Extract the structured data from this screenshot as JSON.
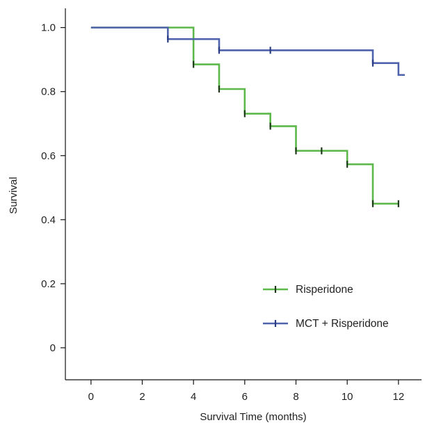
{
  "chart_data": {
    "type": "line",
    "subtype": "kaplan-meier-step",
    "title": "",
    "xlabel": "Survival Time (months)",
    "ylabel": "Survival",
    "xlim": [
      -1,
      12.9
    ],
    "ylim": [
      -0.1,
      1.06
    ],
    "xticks": [
      0,
      2,
      4,
      6,
      8,
      10,
      12
    ],
    "xtick_labels": [
      "0",
      "2",
      "4",
      "6",
      "8",
      "10",
      "12"
    ],
    "yticks": [
      0,
      0.2,
      0.4,
      0.6,
      0.8,
      1.0
    ],
    "ytick_labels": [
      "0",
      "0.2",
      "0.4",
      "0.6",
      "0.8",
      "1.0"
    ],
    "grid": false,
    "legend_position": "bottom-right",
    "series": [
      {
        "name": "Risperidone",
        "color": "#5cb84a",
        "censor_color": "#1e3a1a",
        "x": [
          0,
          4,
          5,
          6,
          7,
          8,
          10,
          11,
          12
        ],
        "y": [
          1.0,
          0.885,
          0.808,
          0.731,
          0.692,
          0.615,
          0.573,
          0.45,
          0.45
        ],
        "censored": [
          {
            "x": 4,
            "y": 0.885
          },
          {
            "x": 5,
            "y": 0.808
          },
          {
            "x": 6,
            "y": 0.731
          },
          {
            "x": 7,
            "y": 0.692
          },
          {
            "x": 8,
            "y": 0.615
          },
          {
            "x": 9,
            "y": 0.615
          },
          {
            "x": 10,
            "y": 0.573
          },
          {
            "x": 11,
            "y": 0.45
          },
          {
            "x": 12,
            "y": 0.45
          }
        ]
      },
      {
        "name": "MCT + Risperidone",
        "color": "#4f63ad",
        "censor_color": "#2b3c80",
        "x": [
          0,
          3,
          5,
          11,
          12,
          12.25
        ],
        "y": [
          1.0,
          0.964,
          0.929,
          0.889,
          0.852,
          0.852
        ],
        "censored": [
          {
            "x": 3,
            "y": 0.964
          },
          {
            "x": 5,
            "y": 0.929
          },
          {
            "x": 7,
            "y": 0.929
          },
          {
            "x": 11,
            "y": 0.889
          }
        ]
      }
    ]
  }
}
